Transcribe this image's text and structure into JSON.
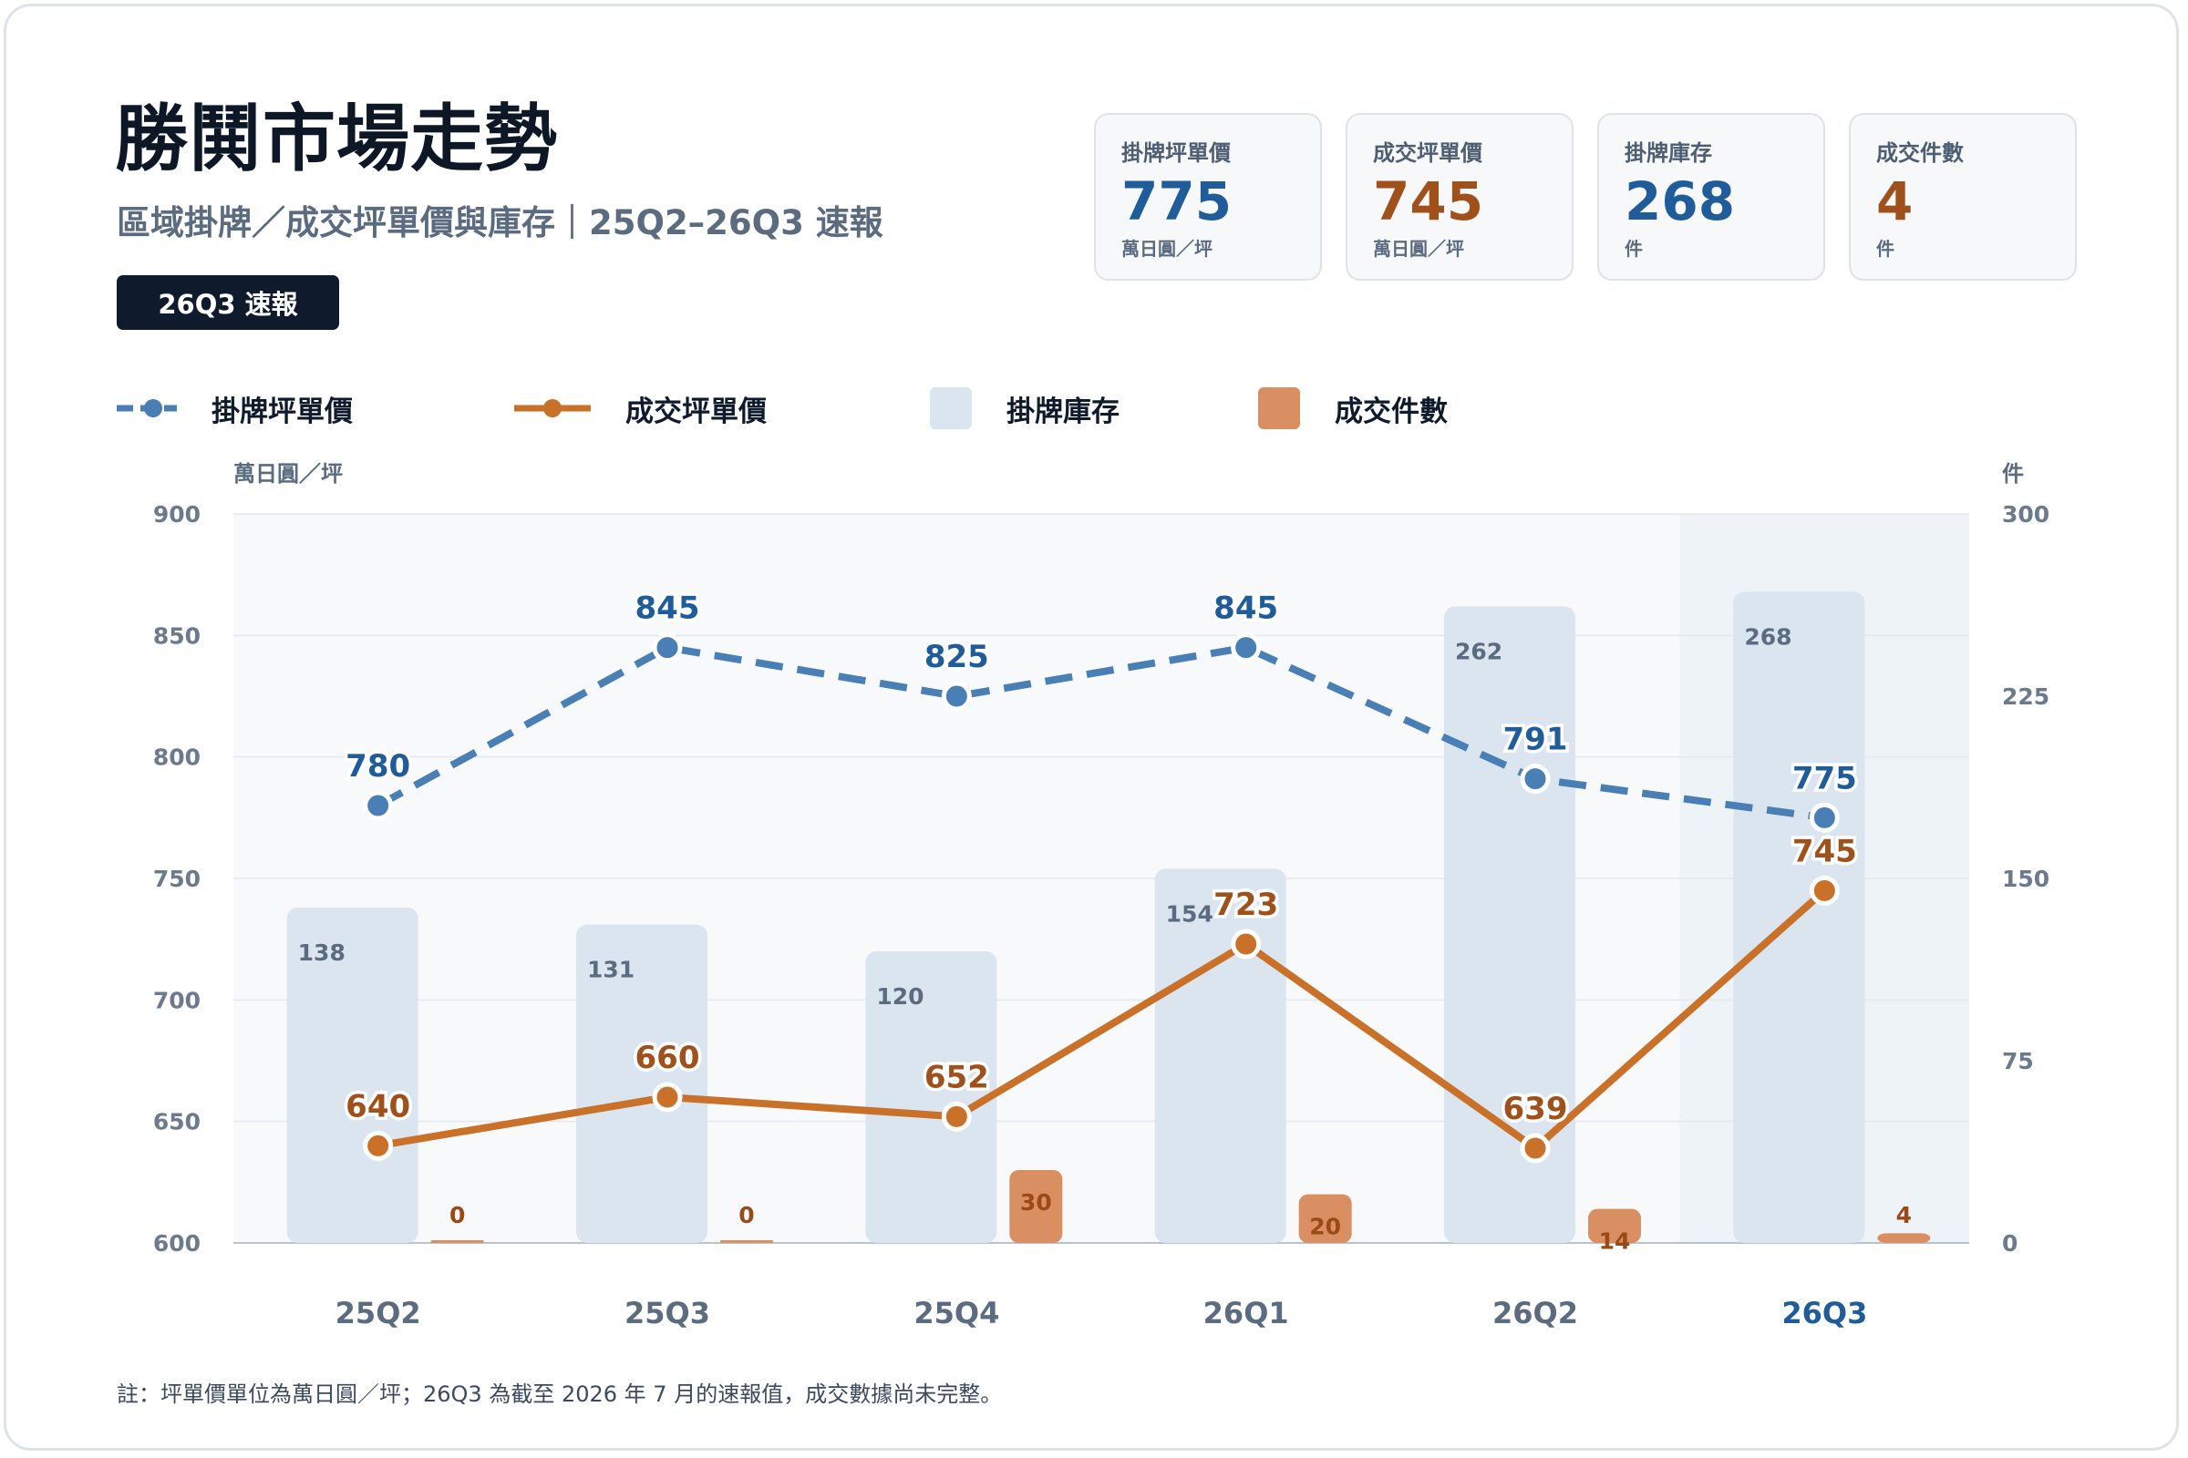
{
  "header": {
    "title": "勝鬨市場走勢",
    "subtitle": "區域掛牌／成交坪單價與庫存｜25Q2–26Q3 速報",
    "badge": "26Q3 速報"
  },
  "kpis": [
    {
      "label": "掛牌坪單價",
      "value": "775",
      "unit": "萬日圓／坪",
      "color": "#1f5c99"
    },
    {
      "label": "成交坪單價",
      "value": "745",
      "unit": "萬日圓／坪",
      "color": "#a0501a"
    },
    {
      "label": "掛牌庫存",
      "value": "268",
      "unit": "件",
      "color": "#1f5c99"
    },
    {
      "label": "成交件數",
      "value": "4",
      "unit": "件",
      "color": "#a0501a"
    }
  ],
  "legend": {
    "listing_price": "掛牌坪單價",
    "deal_price": "成交坪單價",
    "inventory": "掛牌庫存",
    "deals": "成交件數"
  },
  "colors": {
    "listing": "#4a7fb5",
    "listing_text": "#1f5c99",
    "deal": "#c97129",
    "deal_text": "#a0501a",
    "inventory_bar": "#dbe5f0",
    "deals_bar": "#d98f62",
    "highlight_band": "#eef3f7"
  },
  "footnote": "註：坪單價單位為萬日圓／坪；26Q3 為截至 2026 年 7 月的速報值，成交數據尚未完整。",
  "chart_data": {
    "type": "bar",
    "categories": [
      "25Q2",
      "25Q3",
      "25Q4",
      "26Q1",
      "26Q2",
      "26Q3"
    ],
    "highlight_category": "26Q3",
    "y_left": {
      "label": "萬日圓／坪",
      "range": [
        600,
        900
      ],
      "ticks": [
        600,
        650,
        700,
        750,
        800,
        850,
        900
      ]
    },
    "y_right": {
      "label": "件",
      "range": [
        0,
        300
      ],
      "ticks": [
        0,
        75,
        150,
        225,
        300
      ]
    },
    "grid": true,
    "legend_position": "top-left",
    "series": [
      {
        "name": "掛牌坪單價",
        "type": "line",
        "style": "dashed",
        "axis": "left",
        "values": [
          780,
          845,
          825,
          845,
          791,
          775
        ]
      },
      {
        "name": "成交坪單價",
        "type": "line",
        "style": "solid",
        "axis": "left",
        "values": [
          640,
          660,
          652,
          723,
          639,
          745
        ]
      },
      {
        "name": "掛牌庫存",
        "type": "bar",
        "axis": "right",
        "values": [
          138,
          131,
          120,
          154,
          262,
          268
        ]
      },
      {
        "name": "成交件數",
        "type": "bar",
        "axis": "right",
        "values": [
          0,
          0,
          30,
          20,
          14,
          4
        ]
      }
    ]
  }
}
